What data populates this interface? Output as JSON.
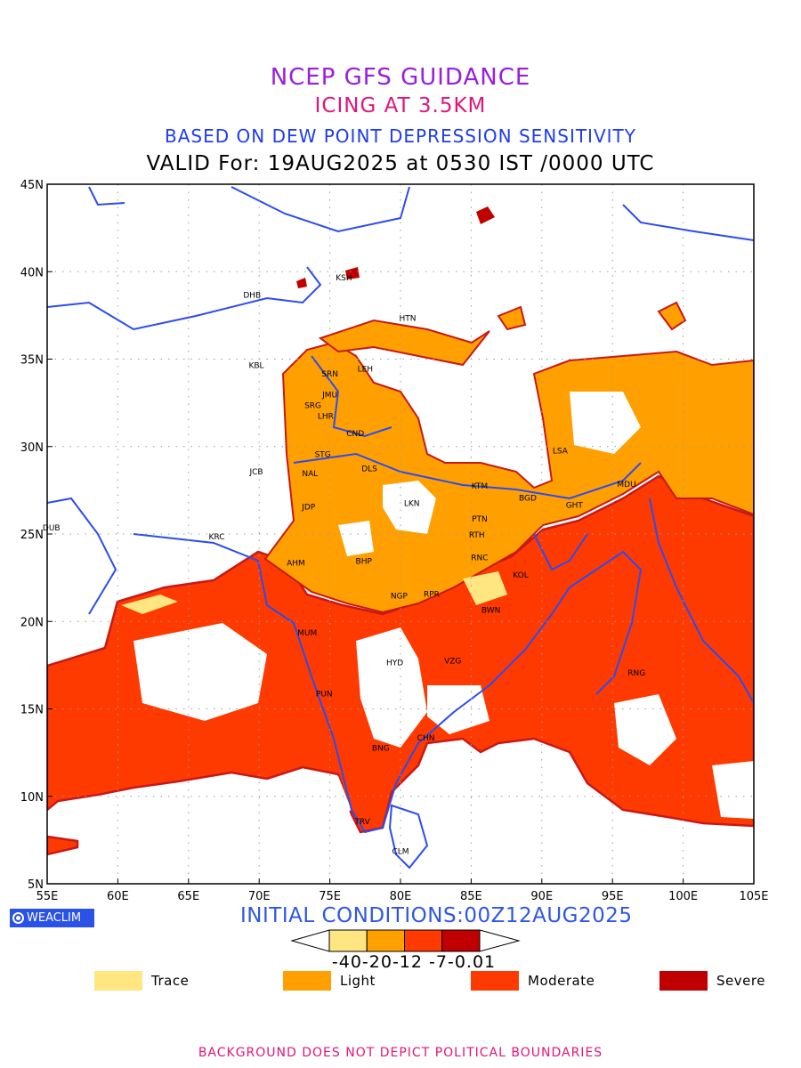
{
  "header": {
    "line1": "NCEP GFS GUIDANCE",
    "line2": "ICING AT 3.5KM",
    "line3": "BASED ON DEW POINT DEPRESSION SENSITIVITY",
    "line4": "VALID For: 19AUG2025 at 0530 IST /0000 UTC"
  },
  "map": {
    "lat_labels": [
      "45N",
      "40N",
      "35N",
      "30N",
      "25N",
      "20N",
      "15N",
      "10N",
      "5N"
    ],
    "lon_labels": [
      "55E",
      "60E",
      "65E",
      "70E",
      "75E",
      "80E",
      "85E",
      "90E",
      "95E",
      "100E",
      "105E"
    ],
    "lon_range": [
      55,
      105
    ],
    "lat_range": [
      5,
      45
    ],
    "grid": "dotted",
    "colors": {
      "trace": "#ffe680",
      "light": "#ffa000",
      "moderate": "#ff3a00",
      "severe": "#c00000",
      "edge": "#c81818",
      "border": "#2b4cf0"
    },
    "stations": [
      {
        "code": "KSH",
        "lon": 76.0,
        "lat": 39.5
      },
      {
        "code": "DHB",
        "lon": 69.5,
        "lat": 38.5
      },
      {
        "code": "HTN",
        "lon": 80.5,
        "lat": 37.2
      },
      {
        "code": "KBL",
        "lon": 69.8,
        "lat": 34.5
      },
      {
        "code": "SRN",
        "lon": 75.0,
        "lat": 34.0
      },
      {
        "code": "LEH",
        "lon": 77.5,
        "lat": 34.3
      },
      {
        "code": "JMU",
        "lon": 75.0,
        "lat": 32.8
      },
      {
        "code": "SRG",
        "lon": 73.8,
        "lat": 32.2
      },
      {
        "code": "LHR",
        "lon": 74.7,
        "lat": 31.6
      },
      {
        "code": "CND",
        "lon": 76.8,
        "lat": 30.6
      },
      {
        "code": "STG",
        "lon": 74.5,
        "lat": 29.4
      },
      {
        "code": "JCB",
        "lon": 69.8,
        "lat": 28.4
      },
      {
        "code": "NAL",
        "lon": 73.6,
        "lat": 28.3
      },
      {
        "code": "DLS",
        "lon": 77.8,
        "lat": 28.6
      },
      {
        "code": "LSA",
        "lon": 91.3,
        "lat": 29.6
      },
      {
        "code": "KTM",
        "lon": 85.6,
        "lat": 27.6
      },
      {
        "code": "MDU",
        "lon": 96.0,
        "lat": 27.7
      },
      {
        "code": "BGD",
        "lon": 89.0,
        "lat": 26.9
      },
      {
        "code": "GHT",
        "lon": 92.3,
        "lat": 26.5
      },
      {
        "code": "JDP",
        "lon": 73.5,
        "lat": 26.4
      },
      {
        "code": "LKN",
        "lon": 80.8,
        "lat": 26.6
      },
      {
        "code": "PTN",
        "lon": 85.6,
        "lat": 25.7
      },
      {
        "code": "DUB",
        "lon": 55.3,
        "lat": 25.2
      },
      {
        "code": "KRC",
        "lon": 67.0,
        "lat": 24.7
      },
      {
        "code": "RTH",
        "lon": 85.4,
        "lat": 24.8
      },
      {
        "code": "AHM",
        "lon": 72.6,
        "lat": 23.2
      },
      {
        "code": "BHP",
        "lon": 77.4,
        "lat": 23.3
      },
      {
        "code": "RNC",
        "lon": 85.6,
        "lat": 23.5
      },
      {
        "code": "KOL",
        "lon": 88.5,
        "lat": 22.5
      },
      {
        "code": "NGP",
        "lon": 79.9,
        "lat": 21.3
      },
      {
        "code": "RPR",
        "lon": 82.2,
        "lat": 21.4
      },
      {
        "code": "BWN",
        "lon": 86.4,
        "lat": 20.5
      },
      {
        "code": "MUM",
        "lon": 73.4,
        "lat": 19.2
      },
      {
        "code": "HYD",
        "lon": 79.6,
        "lat": 17.5
      },
      {
        "code": "VZG",
        "lon": 83.7,
        "lat": 17.6
      },
      {
        "code": "RNG",
        "lon": 96.7,
        "lat": 16.9
      },
      {
        "code": "PUN",
        "lon": 74.6,
        "lat": 15.7
      },
      {
        "code": "CHN",
        "lon": 81.8,
        "lat": 13.2
      },
      {
        "code": "BNG",
        "lon": 78.6,
        "lat": 12.6
      },
      {
        "code": "TRV",
        "lon": 77.3,
        "lat": 8.4
      },
      {
        "code": "CLM",
        "lon": 80.0,
        "lat": 6.7
      }
    ]
  },
  "brand": "WEACLIM",
  "initial_conditions": "INITIAL CONDITIONS:00Z12AUG2025",
  "colorbar": {
    "labels": "-40-20-12 -7-0.01",
    "colors": [
      "#ffe680",
      "#ffa000",
      "#ff3a00",
      "#c00000"
    ]
  },
  "legend": [
    {
      "label": "Trace",
      "color": "#ffe680"
    },
    {
      "label": "Light",
      "color": "#ffa000"
    },
    {
      "label": "Moderate",
      "color": "#ff3a00"
    },
    {
      "label": "Severe",
      "color": "#c00000"
    }
  ],
  "footer": "BACKGROUND DOES NOT DEPICT POLITICAL BOUNDARIES"
}
